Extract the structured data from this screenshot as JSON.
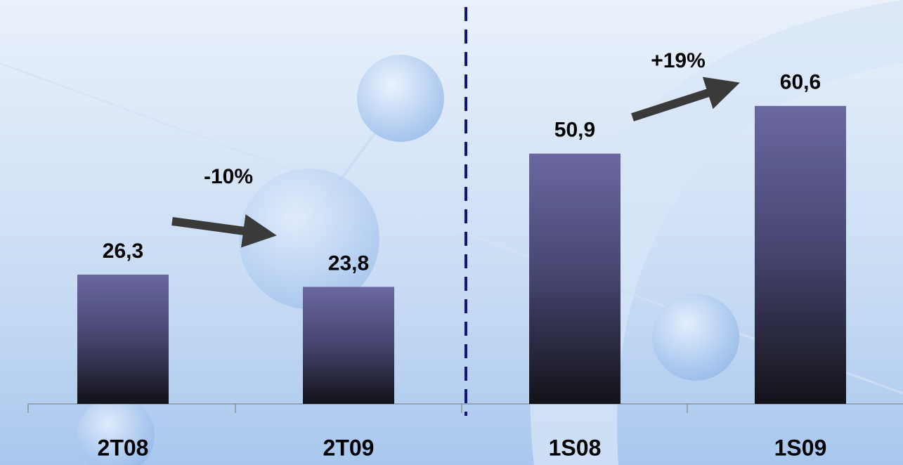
{
  "chart_data": {
    "type": "bar",
    "categories": [
      "2T08",
      "2T09",
      "1S08",
      "1S09"
    ],
    "values": [
      26.3,
      23.8,
      50.9,
      60.6
    ],
    "value_labels": [
      "26,3",
      "23,8",
      "50,9",
      "60,6"
    ],
    "annotations": [
      "-10%",
      "+19%"
    ]
  }
}
